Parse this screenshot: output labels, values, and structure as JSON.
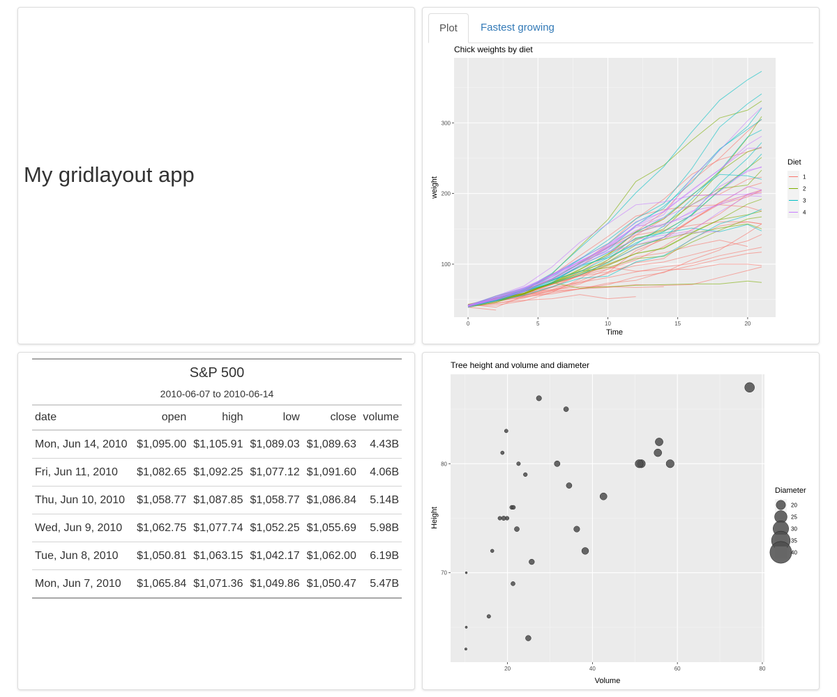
{
  "app": {
    "title": "My gridlayout app"
  },
  "tabs": [
    {
      "label": "Plot",
      "active": true
    },
    {
      "label": "Fastest growing",
      "active": false
    }
  ],
  "chick_plot": {
    "chart_data": {
      "type": "line",
      "title": "Chick weights by diet",
      "xlabel": "Time",
      "ylabel": "weight",
      "xlim": [
        -1,
        22
      ],
      "ylim": [
        25,
        392
      ],
      "xticks": [
        0,
        5,
        10,
        15,
        20
      ],
      "yticks": [
        100,
        200,
        300
      ],
      "legend": {
        "title": "Diet",
        "placement": "right",
        "labels": [
          "1",
          "2",
          "3",
          "4"
        ]
      },
      "colors": [
        "#f8766d",
        "#7cae00",
        "#00bfc4",
        "#c77cff"
      ],
      "times": [
        0,
        2,
        4,
        6,
        8,
        10,
        12,
        14,
        16,
        18,
        20,
        21
      ],
      "series": [
        {
          "diet": 1,
          "values": [
            42,
            51,
            59,
            64,
            76,
            93,
            106,
            125,
            149,
            171,
            199,
            205
          ]
        },
        {
          "diet": 1,
          "values": [
            40,
            49,
            58,
            72,
            84,
            103,
            122,
            138,
            162,
            187,
            209,
            215
          ]
        },
        {
          "diet": 1,
          "values": [
            43,
            39,
            55,
            67,
            84,
            99,
            115,
            138,
            163,
            187,
            198,
            202
          ]
        },
        {
          "diet": 1,
          "values": [
            42,
            49,
            56,
            67,
            74,
            87,
            102,
            108,
            136,
            154,
            160,
            157
          ]
        },
        {
          "diet": 1,
          "values": [
            41,
            42,
            48,
            60,
            79,
            106,
            141,
            164,
            197,
            199,
            220,
            223
          ]
        },
        {
          "diet": 1,
          "values": [
            41,
            49,
            59,
            74,
            97,
            124,
            141,
            148,
            155,
            160,
            160,
            157
          ]
        },
        {
          "diet": 1,
          "values": [
            41,
            49,
            57,
            71,
            89,
            112,
            146,
            174,
            218,
            250,
            288,
            305
          ]
        },
        {
          "diet": 1,
          "values": [
            42,
            50,
            61,
            71,
            84,
            93,
            110,
            116,
            126,
            134,
            125
          ]
        },
        {
          "diet": 1,
          "values": [
            42,
            51,
            59,
            68,
            85,
            96,
            90,
            92,
            93,
            100,
            100,
            98
          ]
        },
        {
          "diet": 1,
          "values": [
            41,
            44,
            52,
            63,
            74,
            81,
            89,
            96,
            101,
            112,
            120,
            124
          ]
        },
        {
          "diet": 1,
          "values": [
            43,
            51,
            63,
            84,
            112,
            139,
            168,
            177,
            182,
            184,
            181,
            175
          ]
        },
        {
          "diet": 1,
          "values": [
            41,
            49,
            56,
            62,
            72,
            88,
            119,
            135,
            162,
            185,
            195,
            205
          ]
        },
        {
          "diet": 1,
          "values": [
            41,
            48,
            53,
            60,
            65,
            67,
            71,
            70,
            71,
            81,
            91,
            96
          ]
        },
        {
          "diet": 1,
          "values": [
            41,
            49,
            62,
            79,
            101,
            128,
            164,
            192,
            227,
            248,
            259,
            266
          ]
        },
        {
          "diet": 1,
          "values": [
            41,
            49,
            56,
            64,
            68,
            68,
            67,
            68
          ]
        },
        {
          "diet": 1,
          "values": [
            41,
            45,
            49,
            51,
            57,
            51,
            54
          ]
        },
        {
          "diet": 1,
          "values": [
            42,
            51,
            61,
            72,
            83,
            89,
            98,
            103,
            113,
            123,
            133,
            142
          ]
        },
        {
          "diet": 1,
          "values": [
            39,
            35
          ]
        },
        {
          "diet": 1,
          "values": [
            43,
            48,
            55,
            62,
            65,
            71,
            82,
            88,
            106,
            120,
            144,
            157
          ]
        },
        {
          "diet": 1,
          "values": [
            41,
            47,
            54,
            58,
            65,
            73,
            77,
            89,
            98,
            107,
            115,
            117
          ]
        },
        {
          "diet": 2,
          "values": [
            40,
            50,
            62,
            86,
            125,
            163,
            217,
            240,
            275,
            307,
            318,
            331
          ]
        },
        {
          "diet": 2,
          "values": [
            41,
            55,
            64,
            77,
            90,
            95,
            108,
            111,
            131,
            148,
            164,
            167
          ]
        },
        {
          "diet": 2,
          "values": [
            43,
            52,
            61,
            73,
            90,
            103,
            127,
            135,
            145,
            163,
            170,
            175
          ]
        },
        {
          "diet": 2,
          "values": [
            42,
            52,
            58,
            74,
            66,
            68,
            70,
            71,
            72,
            72,
            76,
            74
          ]
        },
        {
          "diet": 2,
          "values": [
            40,
            49,
            62,
            78,
            102,
            124,
            146,
            164,
            197,
            231,
            259,
            265
          ]
        },
        {
          "diet": 2,
          "values": [
            42,
            48,
            57,
            74,
            93,
            114,
            136,
            147,
            169,
            205,
            236,
            251
          ]
        },
        {
          "diet": 2,
          "values": [
            39,
            46,
            58,
            73,
            87,
            100,
            115,
            123,
            144,
            163,
            185,
            192
          ]
        },
        {
          "diet": 2,
          "values": [
            39,
            46,
            58,
            73,
            92,
            114,
            145,
            156,
            184,
            207,
            212,
            233
          ]
        },
        {
          "diet": 2,
          "values": [
            39,
            48,
            59,
            74,
            87,
            106,
            134,
            150,
            187,
            230,
            279,
            309
          ]
        },
        {
          "diet": 2,
          "values": [
            42,
            48,
            59,
            72,
            85,
            98,
            115,
            122,
            143,
            151,
            157,
            150
          ]
        },
        {
          "diet": 3,
          "values": [
            42,
            53,
            62,
            73,
            85,
            102,
            123,
            138,
            170,
            204,
            235,
            256
          ]
        },
        {
          "diet": 3,
          "values": [
            41,
            49,
            65,
            82,
            107,
            129,
            159,
            179,
            221,
            263,
            291,
            305
          ]
        },
        {
          "diet": 3,
          "values": [
            39,
            50,
            63,
            77,
            96,
            111,
            137,
            144,
            151,
            146,
            156,
            147
          ]
        },
        {
          "diet": 3,
          "values": [
            41,
            49,
            63,
            85,
            107,
            134,
            164,
            186,
            235,
            294,
            327,
            341
          ]
        },
        {
          "diet": 3,
          "values": [
            41,
            53,
            64,
            87,
            123,
            158,
            201,
            238,
            287,
            332,
            361,
            373
          ]
        },
        {
          "diet": 3,
          "values": [
            39,
            48,
            61,
            76,
            98,
            116,
            145,
            166,
            198,
            227,
            225,
            220
          ]
        },
        {
          "diet": 3,
          "values": [
            41,
            48,
            56,
            68,
            80,
            83,
            103,
            112,
            135,
            157,
            169,
            178
          ]
        },
        {
          "diet": 3,
          "values": [
            41,
            49,
            61,
            74,
            98,
            109,
            128,
            154,
            192,
            232,
            280,
            290
          ]
        },
        {
          "diet": 3,
          "values": [
            42,
            50,
            61,
            78,
            89,
            109,
            130,
            146,
            170,
            214,
            250,
            272
          ]
        },
        {
          "diet": 3,
          "values": [
            41,
            55,
            66,
            79,
            101,
            120,
            154,
            182,
            215,
            262,
            295,
            321
          ]
        },
        {
          "diet": 4,
          "values": [
            42,
            51,
            66,
            85,
            103,
            124,
            155,
            153,
            175,
            184,
            199,
            204
          ]
        },
        {
          "diet": 4,
          "values": [
            42,
            49,
            63,
            84,
            103,
            126,
            160,
            174,
            204,
            234,
            269,
            281
          ]
        },
        {
          "diet": 4,
          "values": [
            42,
            55,
            69,
            96,
            131,
            157,
            184,
            188,
            197,
            198,
            199,
            200
          ]
        },
        {
          "diet": 4,
          "values": [
            42,
            51,
            65,
            86,
            103,
            118,
            127,
            138,
            145,
            146
          ]
        },
        {
          "diet": 4,
          "values": [
            41,
            50,
            61,
            78,
            98,
            117,
            135,
            141,
            147,
            174,
            197,
            196
          ]
        },
        {
          "diet": 4,
          "values": [
            40,
            52,
            62,
            82,
            101,
            120,
            144,
            156,
            173,
            210,
            231,
            238
          ]
        },
        {
          "diet": 4,
          "values": [
            41,
            53,
            66,
            79,
            100,
            123,
            148,
            157,
            168,
            185,
            210,
            205
          ]
        },
        {
          "diet": 4,
          "values": [
            39,
            50,
            62,
            80,
            104,
            125,
            154,
            170,
            222,
            261,
            303,
            322
          ]
        },
        {
          "diet": 4,
          "values": [
            40,
            53,
            64,
            85,
            108,
            128,
            152,
            166,
            184,
            203,
            233,
            237
          ]
        },
        {
          "diet": 4,
          "values": [
            41,
            54,
            67,
            84,
            105,
            122,
            155,
            175,
            205,
            234,
            264,
            264
          ]
        }
      ]
    }
  },
  "sp500": {
    "title": "S&P 500",
    "subtitle": "2010-06-07 to 2010-06-14",
    "columns": [
      "date",
      "open",
      "high",
      "low",
      "close",
      "volume"
    ],
    "rows": [
      [
        "Mon, Jun 14, 2010",
        "$1,095.00",
        "$1,105.91",
        "$1,089.03",
        "$1,089.63",
        "4.43B"
      ],
      [
        "Fri, Jun 11, 2010",
        "$1,082.65",
        "$1,092.25",
        "$1,077.12",
        "$1,091.60",
        "4.06B"
      ],
      [
        "Thu, Jun 10, 2010",
        "$1,058.77",
        "$1,087.85",
        "$1,058.77",
        "$1,086.84",
        "5.14B"
      ],
      [
        "Wed, Jun 9, 2010",
        "$1,062.75",
        "$1,077.74",
        "$1,052.25",
        "$1,055.69",
        "5.98B"
      ],
      [
        "Tue, Jun 8, 2010",
        "$1,050.81",
        "$1,063.15",
        "$1,042.17",
        "$1,062.00",
        "6.19B"
      ],
      [
        "Mon, Jun 7, 2010",
        "$1,065.84",
        "$1,071.36",
        "$1,049.86",
        "$1,050.47",
        "5.47B"
      ]
    ]
  },
  "trees_plot": {
    "chart_data": {
      "type": "scatter",
      "title": "Tree height and volume and diameter",
      "xlabel": "Volume",
      "ylabel": "Height",
      "xlim": [
        6.6,
        80.5
      ],
      "ylim": [
        61.8,
        88.2
      ],
      "xticks": [
        20,
        40,
        60,
        80
      ],
      "yticks": [
        70,
        80
      ],
      "point_color": "#4d4d4d",
      "legend": {
        "title": "Diameter",
        "placement": "right",
        "labels": [
          "20",
          "25",
          "30",
          "35",
          "40"
        ]
      },
      "points": [
        {
          "volume": 10.3,
          "height": 70,
          "diameter": 8.3
        },
        {
          "volume": 10.3,
          "height": 65,
          "diameter": 8.6
        },
        {
          "volume": 10.2,
          "height": 63,
          "diameter": 8.8
        },
        {
          "volume": 16.4,
          "height": 72,
          "diameter": 10.5
        },
        {
          "volume": 18.8,
          "height": 81,
          "diameter": 10.7
        },
        {
          "volume": 19.7,
          "height": 83,
          "diameter": 10.8
        },
        {
          "volume": 15.6,
          "height": 66,
          "diameter": 11.0
        },
        {
          "volume": 18.2,
          "height": 75,
          "diameter": 11.0
        },
        {
          "volume": 22.6,
          "height": 80,
          "diameter": 11.1
        },
        {
          "volume": 19.9,
          "height": 75,
          "diameter": 11.2
        },
        {
          "volume": 24.2,
          "height": 79,
          "diameter": 11.3
        },
        {
          "volume": 21.0,
          "height": 76,
          "diameter": 11.4
        },
        {
          "volume": 21.4,
          "height": 76,
          "diameter": 11.4
        },
        {
          "volume": 21.3,
          "height": 69,
          "diameter": 11.7
        },
        {
          "volume": 19.1,
          "height": 75,
          "diameter": 12.0
        },
        {
          "volume": 22.2,
          "height": 74,
          "diameter": 12.9
        },
        {
          "volume": 33.8,
          "height": 85,
          "diameter": 12.9
        },
        {
          "volume": 27.4,
          "height": 86,
          "diameter": 13.3
        },
        {
          "volume": 25.7,
          "height": 71,
          "diameter": 13.7
        },
        {
          "volume": 24.9,
          "height": 64,
          "diameter": 13.8
        },
        {
          "volume": 34.5,
          "height": 78,
          "diameter": 14.0
        },
        {
          "volume": 31.7,
          "height": 80,
          "diameter": 14.2
        },
        {
          "volume": 36.3,
          "height": 74,
          "diameter": 14.5
        },
        {
          "volume": 38.3,
          "height": 72,
          "diameter": 16.0
        },
        {
          "volume": 42.6,
          "height": 77,
          "diameter": 16.3
        },
        {
          "volume": 55.4,
          "height": 81,
          "diameter": 17.3
        },
        {
          "volume": 55.7,
          "height": 82,
          "diameter": 17.5
        },
        {
          "volume": 58.3,
          "height": 80,
          "diameter": 17.9
        },
        {
          "volume": 51.5,
          "height": 80,
          "diameter": 18.0
        },
        {
          "volume": 51.0,
          "height": 80,
          "diameter": 18.0
        },
        {
          "volume": 77.0,
          "height": 87,
          "diameter": 20.6
        }
      ]
    }
  }
}
